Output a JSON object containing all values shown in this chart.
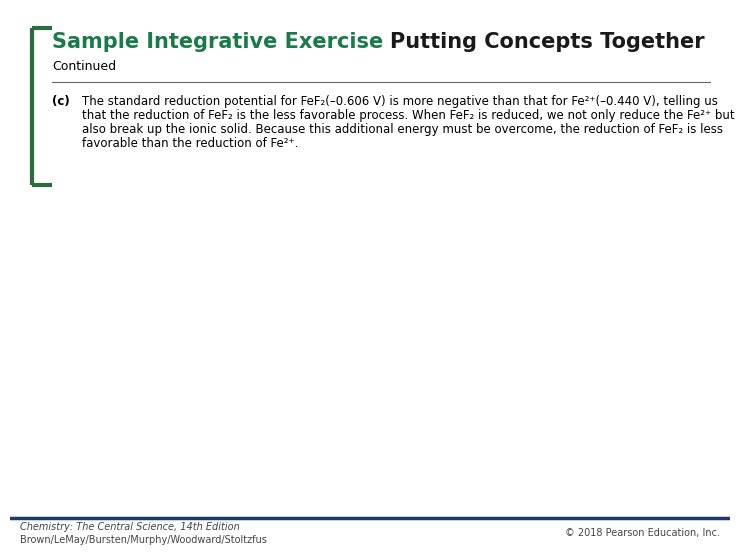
{
  "title_part1": "Sample Integrative Exercise ",
  "title_part2": "Putting Concepts Together",
  "subtitle": "Continued",
  "body_label": "(c)",
  "body_lines": [
    "The standard reduction potential for FeF₂(–0.606 V) is more negative than that for Fe²⁺(–0.440 V), telling us",
    "that the reduction of FeF₂ is the less favorable process. When FeF₂ is reduced, we not only reduce the Fe²⁺ but",
    "also break up the ionic solid. Because this additional energy must be overcome, the reduction of FeF₂ is less",
    "favorable than the reduction of Fe²⁺."
  ],
  "footer_left_line1": "Chemistry: The Central Science, 14th Edition",
  "footer_left_line2": "Brown/LeMay/Bursten/Murphy/Woodward/Stoltzfus",
  "footer_right": "© 2018 Pearson Education, Inc.",
  "title_color1": "#1a7a4a",
  "title_color2": "#1a1a1a",
  "bracket_color": "#2d6b3c",
  "separator_color": "#666666",
  "footer_line_color": "#1a3a6a",
  "background_color": "#ffffff",
  "text_color": "#000000",
  "footer_text_color": "#444444",
  "title_fontsize": 15,
  "subtitle_fontsize": 9,
  "body_fontsize": 8.5,
  "footer_fontsize": 7
}
